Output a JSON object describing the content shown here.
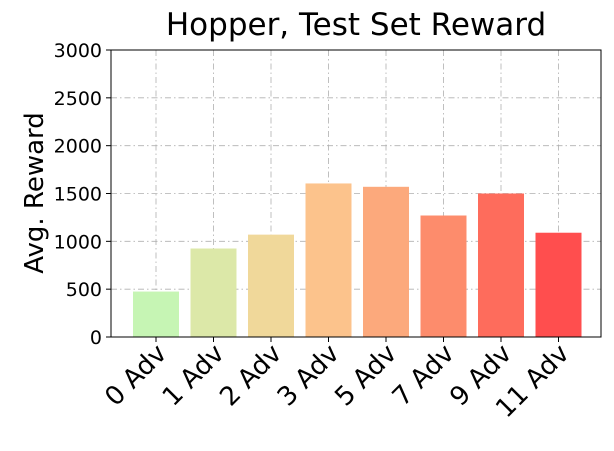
{
  "chart_data": {
    "type": "bar",
    "title": "Hopper, Test Set Reward",
    "xlabel": "",
    "ylabel": "Avg. Reward",
    "categories": [
      "0 Adv",
      "1 Adv",
      "2 Adv",
      "3 Adv",
      "5 Adv",
      "7 Adv",
      "9 Adv",
      "11 Adv"
    ],
    "values": [
      475,
      925,
      1070,
      1605,
      1570,
      1270,
      1500,
      1090
    ],
    "bar_colors": [
      "#c6f5b4",
      "#dce8a8",
      "#f0d89a",
      "#fcc38c",
      "#fca97c",
      "#fd8c6c",
      "#fe6c5c",
      "#ff4e4e"
    ],
    "ylim": [
      0,
      3000
    ],
    "yticks": [
      "0",
      "500",
      "1000",
      "1500",
      "2000",
      "2500",
      "3000"
    ],
    "grid": true,
    "grid_style": "dash-dot"
  }
}
